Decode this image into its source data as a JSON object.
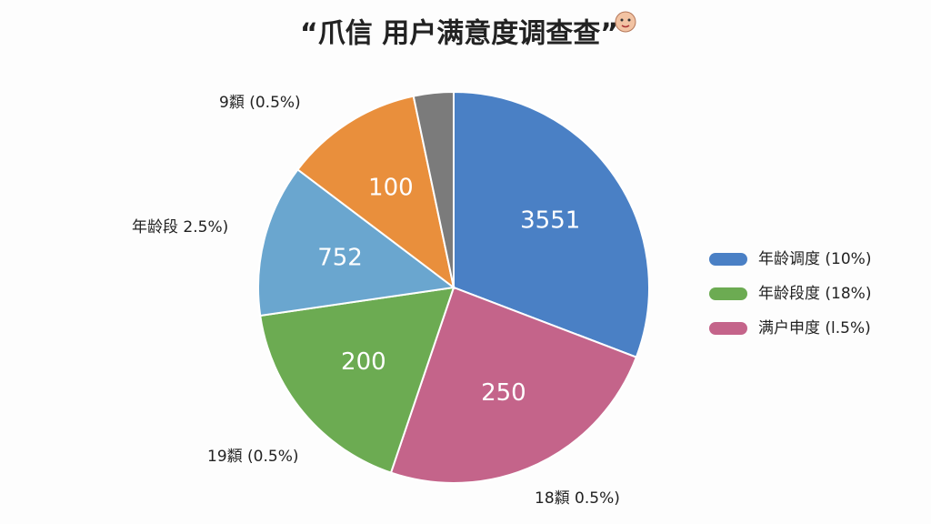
{
  "chart_data": {
    "type": "pie",
    "title": "“爪信 用户满意度调查查”",
    "values": [
      30.8,
      24.4,
      17.5,
      12.6,
      11.4,
      3.3
    ],
    "colors": [
      "#4a80c5",
      "#c4648a",
      "#6cab52",
      "#6aa6cf",
      "#e98f3c",
      "#7b7b7b"
    ],
    "slice_labels": [
      "3551",
      "250",
      "200",
      "752",
      "100",
      null
    ],
    "annotations": [
      {
        "text": "9纇 (0.5%)"
      },
      {
        "text": "年龄段 2.5%)"
      },
      {
        "text": "19纇 (0.5%)"
      },
      {
        "text": "18纇 0.5%)"
      }
    ],
    "legend": [
      {
        "name": "年龄调度 (10%)",
        "color": "#4a80c5"
      },
      {
        "name": "年龄段度 (18%)",
        "color": "#6cab52"
      },
      {
        "name": "满户申度 (l.5%)",
        "color": "#c4648a"
      }
    ]
  }
}
